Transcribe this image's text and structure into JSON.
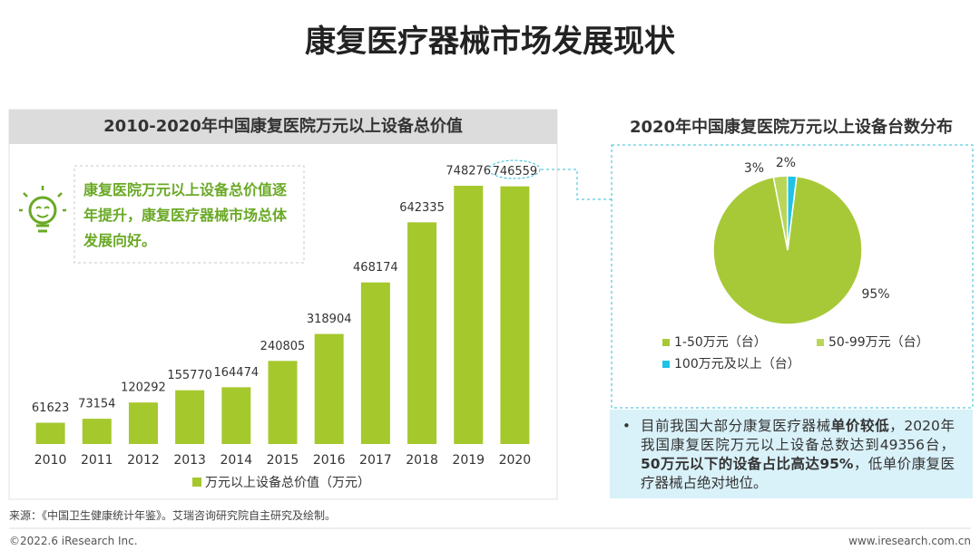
{
  "title": "康复医疗器械市场发展现状",
  "chart_data": [
    {
      "type": "bar",
      "title": "2010-2020年中国康复医院万元以上设备总价值",
      "categories": [
        "2010",
        "2011",
        "2012",
        "2013",
        "2014",
        "2015",
        "2016",
        "2017",
        "2018",
        "2019",
        "2020"
      ],
      "series": [
        {
          "name": "万元以上设备总价值（万元）",
          "color": "#a5c82d",
          "values": [
            61623,
            73154,
            120292,
            155770,
            164474,
            240805,
            318904,
            468174,
            642335,
            748276,
            746559
          ]
        }
      ]
    },
    {
      "type": "pie",
      "title": "2020年中国康复医院万元以上设备台数分布",
      "categories": [
        "1-50万元（台）",
        "50-99万元（台）",
        "100万元及以上（台）"
      ],
      "values": [
        95,
        3,
        2
      ],
      "value_labels": [
        "95%",
        "3%",
        "2%"
      ],
      "colors": [
        "#a8c937",
        "#b9d65a",
        "#1ec3e6"
      ]
    }
  ],
  "callout": "康复医院万元以上设备总价值逐年提升，康复医疗器械市场总体发展向好。",
  "note": [
    {
      "text": "目前我国大部分康复医疗器械",
      "bold": false
    },
    {
      "text": "单价较低",
      "bold": true
    },
    {
      "text": "，2020年我国康复医院万元以上设备总数达到49356台，",
      "bold": false
    },
    {
      "text": "50万元以下的设备占比高达95%",
      "bold": true
    },
    {
      "text": "，低单价康复医疗器械占绝对地位。",
      "bold": false
    }
  ],
  "source": "来源：《中国卫生健康统计年鉴》。艾瑞咨询研究院自主研究及绘制。",
  "copyright": "©2022.6 iResearch Inc.",
  "website": "www.iresearch.com.cn"
}
